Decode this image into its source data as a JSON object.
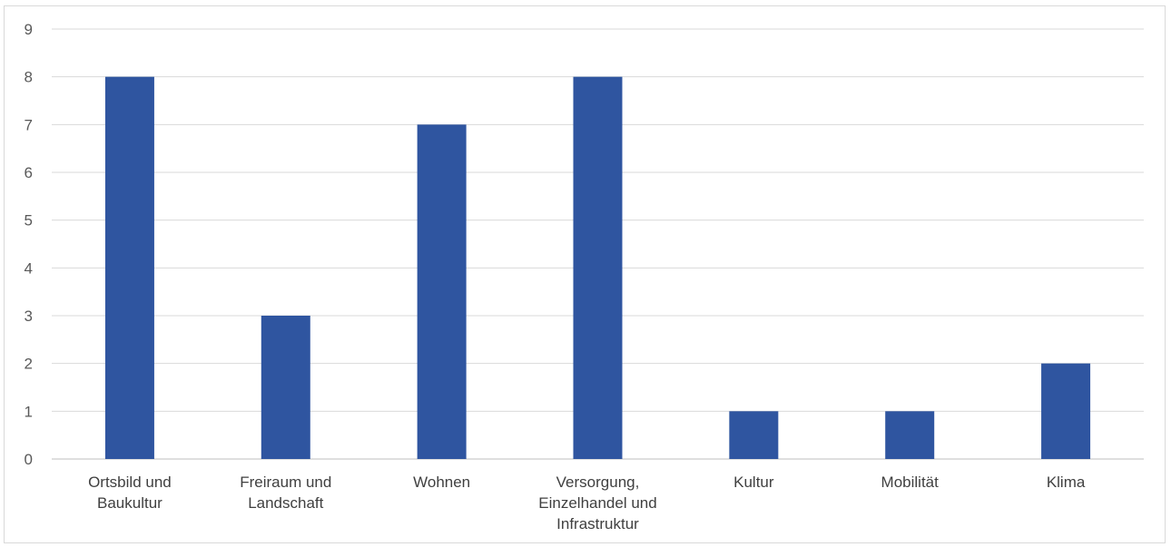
{
  "chart_data": {
    "type": "bar",
    "title": "",
    "xlabel": "",
    "ylabel": "",
    "ylim": [
      0,
      9
    ],
    "yticks": [
      0,
      1,
      2,
      3,
      4,
      5,
      6,
      7,
      8,
      9
    ],
    "grid": true,
    "legend": "none",
    "bar_color": "#2F55A0",
    "categories": [
      [
        "Ortsbild und",
        "Baukultur"
      ],
      [
        "Freiraum und",
        "Landschaft"
      ],
      [
        "Wohnen"
      ],
      [
        "Versorgung,",
        "Einzelhandel und",
        "Infrastruktur"
      ],
      [
        "Kultur"
      ],
      [
        "Mobilität"
      ],
      [
        "Klima"
      ]
    ],
    "values": [
      8,
      3,
      7,
      8,
      1,
      1,
      2
    ]
  }
}
